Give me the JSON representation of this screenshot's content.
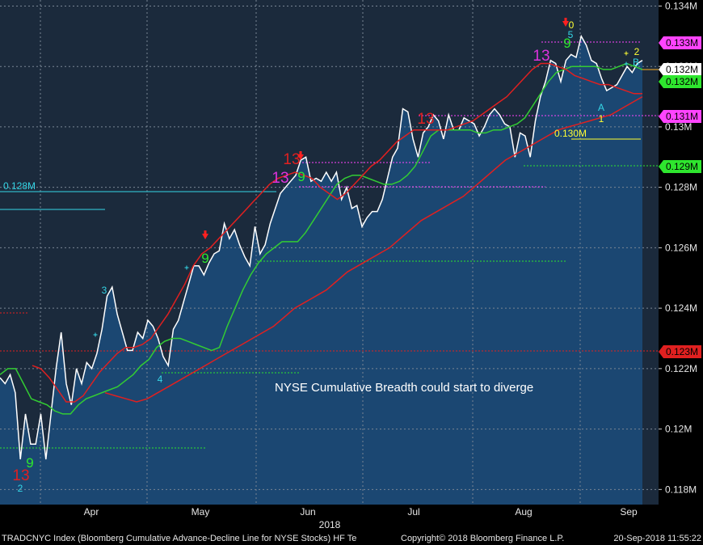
{
  "chart_data": {
    "type": "line",
    "title": "",
    "xlabel": "2018",
    "ylabel": "",
    "ylim": [
      0.1175,
      0.1342
    ],
    "x_ticks": [
      "Apr",
      "May",
      "Jun",
      "Jul",
      "Aug",
      "Sep"
    ],
    "y_ticks": [
      {
        "value": 0.134,
        "label": "0.134M"
      },
      {
        "value": 0.132,
        "label": "0.132M"
      },
      {
        "value": 0.13,
        "label": "0.13M"
      },
      {
        "value": 0.128,
        "label": "0.128M"
      },
      {
        "value": 0.126,
        "label": "0.126M"
      },
      {
        "value": 0.124,
        "label": "0.124M"
      },
      {
        "value": 0.122,
        "label": "0.122M"
      },
      {
        "value": 0.12,
        "label": "0.12M"
      },
      {
        "value": 0.118,
        "label": "0.118M"
      }
    ],
    "grid": true,
    "series": [
      {
        "name": "",
        "color": "#ffffff",
        "values": [
          0.1217,
          0.1215,
          0.1218,
          0.1212,
          0.119,
          0.1205,
          0.1195,
          0.1195,
          0.1205,
          0.119,
          0.1205,
          0.122,
          0.1232,
          0.1215,
          0.1208,
          0.122,
          0.1215,
          0.1222,
          0.122,
          0.1225,
          0.1233,
          0.1244,
          0.1247,
          0.1238,
          0.1232,
          0.1226,
          0.1226,
          0.1232,
          0.123,
          0.1236,
          0.1234,
          0.123,
          0.1224,
          0.1221,
          0.1233,
          0.1236,
          0.1242,
          0.1248,
          0.1254,
          0.1254,
          0.1251,
          0.1255,
          0.1258,
          0.1259,
          0.1268,
          0.1263,
          0.1266,
          0.1261,
          0.1257,
          0.1254,
          0.1267,
          0.1258,
          0.1261,
          0.1268,
          0.1273,
          0.1278,
          0.128,
          0.1282,
          0.1284,
          0.1289,
          0.129,
          0.1282,
          0.1283,
          0.1282,
          0.1285,
          0.1282,
          0.1285,
          0.1276,
          0.128,
          0.1273,
          0.1274,
          0.1267,
          0.127,
          0.1272,
          0.1272,
          0.1276,
          0.1283,
          0.129,
          0.1293,
          0.1306,
          0.1305,
          0.1296,
          0.129,
          0.1298,
          0.13,
          0.1304,
          0.1302,
          0.1296,
          0.1304,
          0.1299,
          0.1299,
          0.1303,
          0.1302,
          0.1301,
          0.1297,
          0.13,
          0.1304,
          0.1306,
          0.1304,
          0.1301,
          0.13,
          0.129,
          0.1298,
          0.1297,
          0.129,
          0.1302,
          0.131,
          0.1315,
          0.1322,
          0.1321,
          0.1315,
          0.1322,
          0.1324,
          0.1323,
          0.133,
          0.1327,
          0.1322,
          0.1321,
          0.1316,
          0.1312,
          0.1313,
          0.1314,
          0.1317,
          0.132,
          0.1318,
          0.1321,
          0.1322
        ]
      },
      {
        "name": "",
        "color": "#33cc33",
        "values": [
          0.1218,
          0.122,
          0.122,
          0.1215,
          0.121,
          0.1209,
          0.1208,
          0.1206,
          0.1205,
          0.1205,
          0.1208,
          0.121,
          0.1211,
          0.1212,
          0.1213,
          0.1214,
          0.1216,
          0.1218,
          0.1221,
          0.1223,
          0.1227,
          0.1229,
          0.123,
          0.123,
          0.1229,
          0.1228,
          0.1227,
          0.1226,
          0.1227,
          0.1234,
          0.124,
          0.1246,
          0.1251,
          0.1255,
          0.1258,
          0.126,
          0.1262,
          0.1262,
          0.1262,
          0.1265,
          0.1269,
          0.1273,
          0.1277,
          0.1281,
          0.1283,
          0.1284,
          0.1284,
          0.1283,
          0.1282,
          0.1281,
          0.1281,
          0.1282,
          0.1284,
          0.1287,
          0.1292,
          0.1297,
          0.1299,
          0.1299,
          0.1299,
          0.1299,
          0.1299,
          0.1298,
          0.1298,
          0.1299,
          0.1299,
          0.13,
          0.1301,
          0.1303,
          0.1307,
          0.1311,
          0.1315,
          0.1318,
          0.1319,
          0.132,
          0.132,
          0.132,
          0.132,
          0.1319,
          0.1319,
          0.132,
          0.1321,
          0.132,
          0.1319
        ]
      },
      {
        "name": "",
        "color": "#e02020",
        "values": [
          0.1221,
          0.122,
          0.1217,
          0.1213,
          0.1209,
          0.1209,
          0.1211,
          0.1215,
          0.1219,
          0.1222,
          0.1225,
          0.1227,
          0.1227,
          0.1228,
          0.123,
          0.1234,
          0.1238,
          0.1243,
          0.1248,
          0.1254,
          0.1258,
          0.126,
          0.1263,
          0.1266,
          0.1269,
          0.1272,
          0.1275,
          0.1278,
          0.1281,
          0.1283,
          0.1284,
          0.1285,
          0.1284,
          0.1283,
          0.128,
          0.1278,
          0.1276,
          0.1278,
          0.1281,
          0.1284,
          0.1287,
          0.1289,
          0.1292,
          0.1295,
          0.1297,
          0.1299,
          0.1299,
          0.1299,
          0.1299,
          0.1299,
          0.13,
          0.1301,
          0.1302,
          0.1304,
          0.1306,
          0.1308,
          0.131,
          0.1313,
          0.1316,
          0.1319,
          0.1321,
          0.1321,
          0.132,
          0.1319,
          0.1317,
          0.1316,
          0.1315,
          0.1314,
          0.1314,
          0.1313,
          0.1312,
          0.1311,
          0.1311
        ]
      },
      {
        "name": "",
        "color": "#e02020",
        "values": [
          0.1212,
          0.1211,
          0.121,
          0.1209,
          0.121,
          0.1212,
          0.1214,
          0.1216,
          0.1218,
          0.122,
          0.1222,
          0.1224,
          0.1226,
          0.1228,
          0.123,
          0.1232,
          0.1234,
          0.1237,
          0.124,
          0.1242,
          0.1244,
          0.1246,
          0.1249,
          0.1252,
          0.1254,
          0.1256,
          0.1258,
          0.126,
          0.1263,
          0.1266,
          0.1269,
          0.1271,
          0.1273,
          0.1275,
          0.1277,
          0.128,
          0.1283,
          0.1286,
          0.1289,
          0.1291,
          0.1293,
          0.1295,
          0.1297,
          0.1299,
          0.13,
          0.1301,
          0.1302,
          0.1303,
          0.1304,
          0.1306,
          0.1308,
          0.131
        ]
      }
    ],
    "price_tags": [
      {
        "label": "0.133M",
        "color": "#ff44ff"
      },
      {
        "label": "0.132M",
        "color": "#ffffff"
      },
      {
        "label": "0.132M",
        "color": "#2ee62e"
      },
      {
        "label": "0.131M",
        "color": "#ff44ff"
      },
      {
        "label": "0.129M",
        "color": "#2ee62e"
      },
      {
        "label": "0.123M",
        "color": "#e02020"
      }
    ],
    "annotations": [
      {
        "text": "0.128M",
        "color": "#35d6e6"
      },
      {
        "text": "0.130M",
        "color": "#ffff33"
      },
      {
        "text": "NYSE Cumulative Breadth could start to diverge",
        "color": "#ffffff"
      },
      {
        "text": "13",
        "color": "#e02020"
      },
      {
        "text": "9",
        "color": "#2ee62e"
      },
      {
        "text": "2",
        "color": "#35d6e6"
      },
      {
        "text": "3",
        "color": "#35d6e6"
      },
      {
        "text": "4",
        "color": "#35d6e6"
      },
      {
        "text": "9",
        "color": "#2ee62e"
      },
      {
        "text": "13",
        "color": "#e02020"
      },
      {
        "text": "13",
        "color": "#dd33dd"
      },
      {
        "text": "9",
        "color": "#2ee62e"
      },
      {
        "text": "13",
        "color": "#e02020"
      },
      {
        "text": "13",
        "color": "#dd33dd"
      },
      {
        "text": "0",
        "color": "#ffff33"
      },
      {
        "text": "5",
        "color": "#35d6e6"
      },
      {
        "text": "9",
        "color": "#2ee62e"
      },
      {
        "text": "2",
        "color": "#ffff33"
      },
      {
        "text": "B",
        "color": "#35d6e6"
      },
      {
        "text": "A",
        "color": "#35d6e6"
      },
      {
        "text": "1",
        "color": "#ffff33"
      }
    ]
  },
  "footer": {
    "left": "TRADCNYC Index (Bloomberg Cumulative Advance-Decline Line for NYSE Stocks) HF Te",
    "center": "Copyright© 2018 Bloomberg Finance L.P.",
    "right": "20-Sep-2018 11:55:22"
  },
  "colors": {
    "plot_bg": "#1b2a3c",
    "area_fill": "#1c4a78",
    "grid": "#7a8694"
  }
}
